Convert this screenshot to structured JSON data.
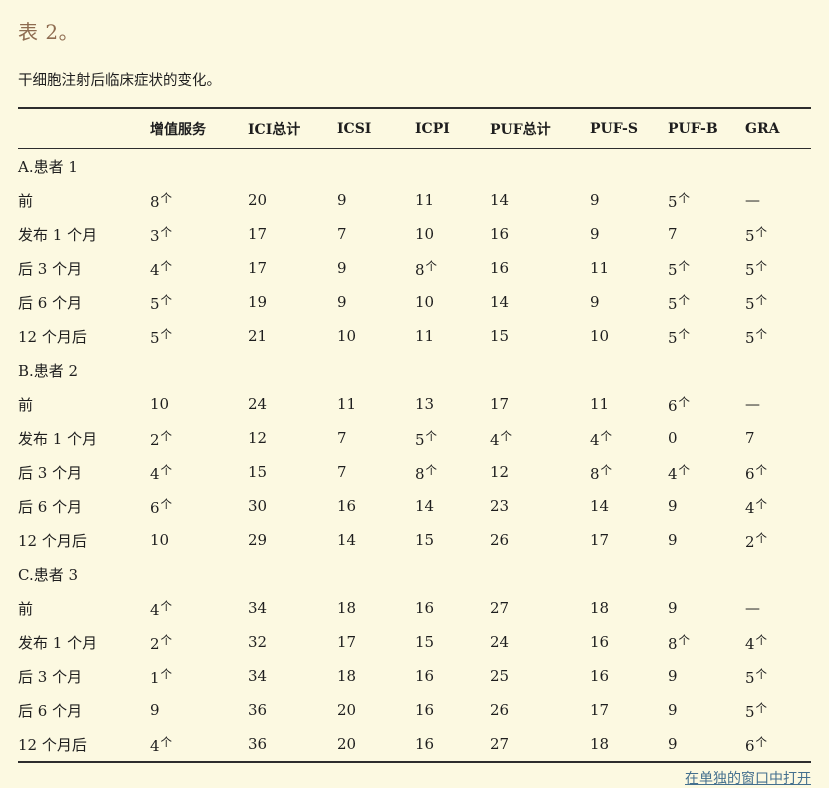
{
  "theme": {
    "bg": "#fcf9e1",
    "title": "#8e6c50",
    "text": "#1e1e1e",
    "rule": "#2d2d2d",
    "link": "#44708e"
  },
  "caption": {
    "label": "表 2。",
    "description": "干细胞注射后临床症状的变化。"
  },
  "table": {
    "columns": [
      "",
      "增值服务",
      "ICI总计",
      "ICSI",
      "ICPI",
      "PUF总计",
      "PUF-S",
      "PUF-B",
      "GRA"
    ],
    "footnote_marker": "个",
    "sections": [
      {
        "title": "A.患者 1",
        "rows": [
          {
            "label": "前",
            "values": [
              "8个",
              "20",
              "9",
              "11",
              "14",
              "9",
              "5个",
              "—"
            ]
          },
          {
            "label": "发布 1 个月",
            "values": [
              "3个",
              "17",
              "7",
              "10",
              "16",
              "9",
              "7",
              "5个"
            ]
          },
          {
            "label": "后 3 个月",
            "values": [
              "4个",
              "17",
              "9",
              "8个",
              "16",
              "11",
              "5个",
              "5个"
            ]
          },
          {
            "label": "后 6 个月",
            "values": [
              "5个",
              "19",
              "9",
              "10",
              "14",
              "9",
              "5个",
              "5个"
            ]
          },
          {
            "label": "12 个月后",
            "values": [
              "5个",
              "21",
              "10",
              "11",
              "15",
              "10",
              "5个",
              "5个"
            ]
          }
        ]
      },
      {
        "title": "B.患者 2",
        "rows": [
          {
            "label": "前",
            "values": [
              "10",
              "24",
              "11",
              "13",
              "17",
              "11",
              "6个",
              "—"
            ]
          },
          {
            "label": "发布 1 个月",
            "values": [
              "2个",
              "12",
              "7",
              "5个",
              "4个",
              "4个",
              "0",
              "7"
            ]
          },
          {
            "label": "后 3 个月",
            "values": [
              "4个",
              "15",
              "7",
              "8个",
              "12",
              "8个",
              "4个",
              "6个"
            ]
          },
          {
            "label": "后 6 个月",
            "values": [
              "6个",
              "30",
              "16",
              "14",
              "23",
              "14",
              "9",
              "4个"
            ]
          },
          {
            "label": "12 个月后",
            "values": [
              "10",
              "29",
              "14",
              "15",
              "26",
              "17",
              "9",
              "2个"
            ]
          }
        ]
      },
      {
        "title": "C.患者 3",
        "rows": [
          {
            "label": "前",
            "values": [
              "4个",
              "34",
              "18",
              "16",
              "27",
              "18",
              "9",
              "—"
            ]
          },
          {
            "label": "发布 1 个月",
            "values": [
              "2个",
              "32",
              "17",
              "15",
              "24",
              "16",
              "8个",
              "4个"
            ]
          },
          {
            "label": "后 3 个月",
            "values": [
              "1个",
              "34",
              "18",
              "16",
              "25",
              "16",
              "9",
              "5个"
            ]
          },
          {
            "label": "后 6 个月",
            "values": [
              "9",
              "36",
              "20",
              "16",
              "26",
              "17",
              "9",
              "5个"
            ]
          },
          {
            "label": "12 个月后",
            "values": [
              "4个",
              "36",
              "20",
              "16",
              "27",
              "18",
              "9",
              "6个"
            ]
          }
        ]
      }
    ]
  },
  "footer": {
    "open_link_label": "在单独的窗口中打开"
  }
}
